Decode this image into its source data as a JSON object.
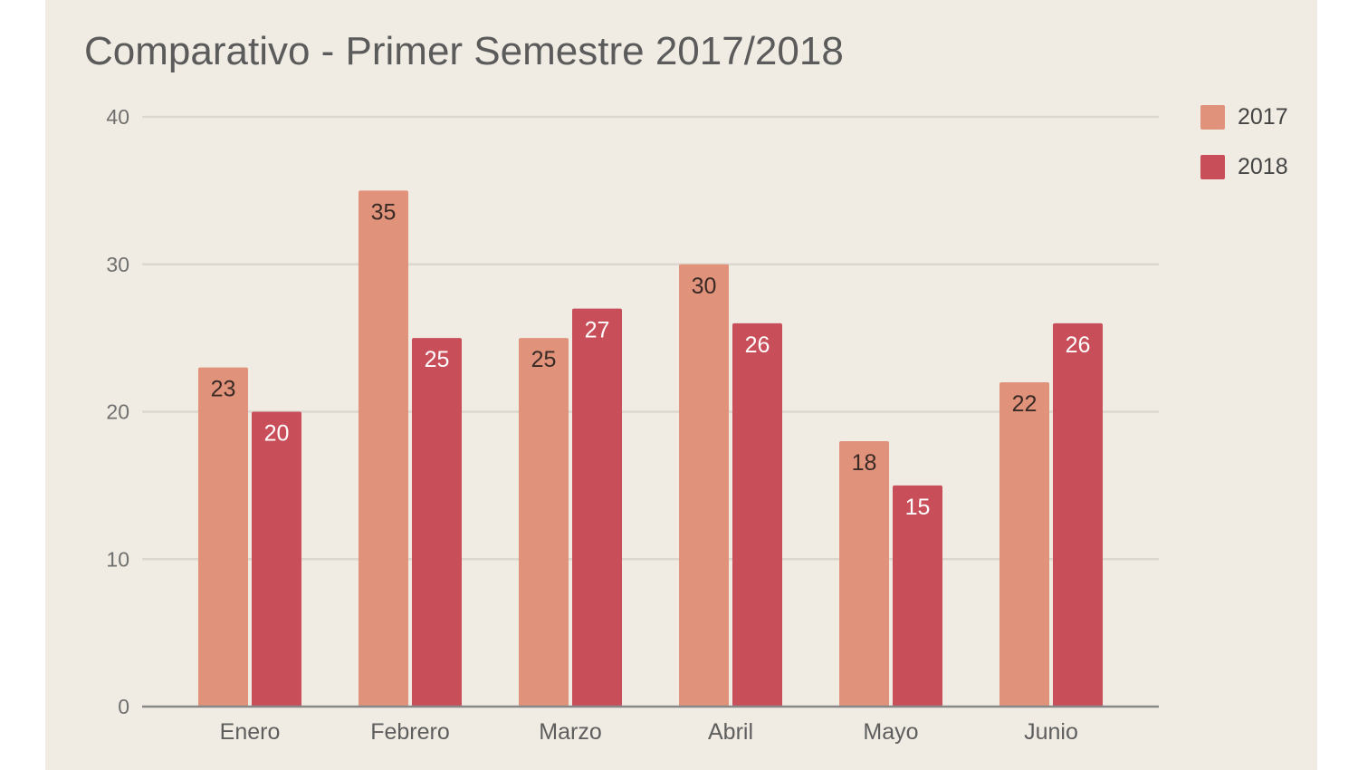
{
  "chart_data": {
    "type": "bar",
    "title": "Comparativo - Primer Semestre 2017/2018",
    "categories": [
      "Enero",
      "Febrero",
      "Marzo",
      "Abril",
      "Mayo",
      "Junio"
    ],
    "series": [
      {
        "name": "2017",
        "values": [
          23,
          35,
          25,
          30,
          18,
          22
        ],
        "color": "#e0937a"
      },
      {
        "name": "2018",
        "values": [
          20,
          25,
          27,
          26,
          15,
          26
        ],
        "color": "#c84f5a"
      }
    ],
    "yticks": [
      "0",
      "10",
      "20",
      "30",
      "40"
    ],
    "ylim": [
      0,
      40
    ],
    "xlabel": "",
    "ylabel": "",
    "grid": true,
    "legend_position": "top-right",
    "data_labels": true
  },
  "colors": {
    "background": "#f0ece3",
    "gridline": "#dcd8d0",
    "axis": "#888888",
    "label_dark": "#3a2a26",
    "label_light": "#ffffff"
  }
}
